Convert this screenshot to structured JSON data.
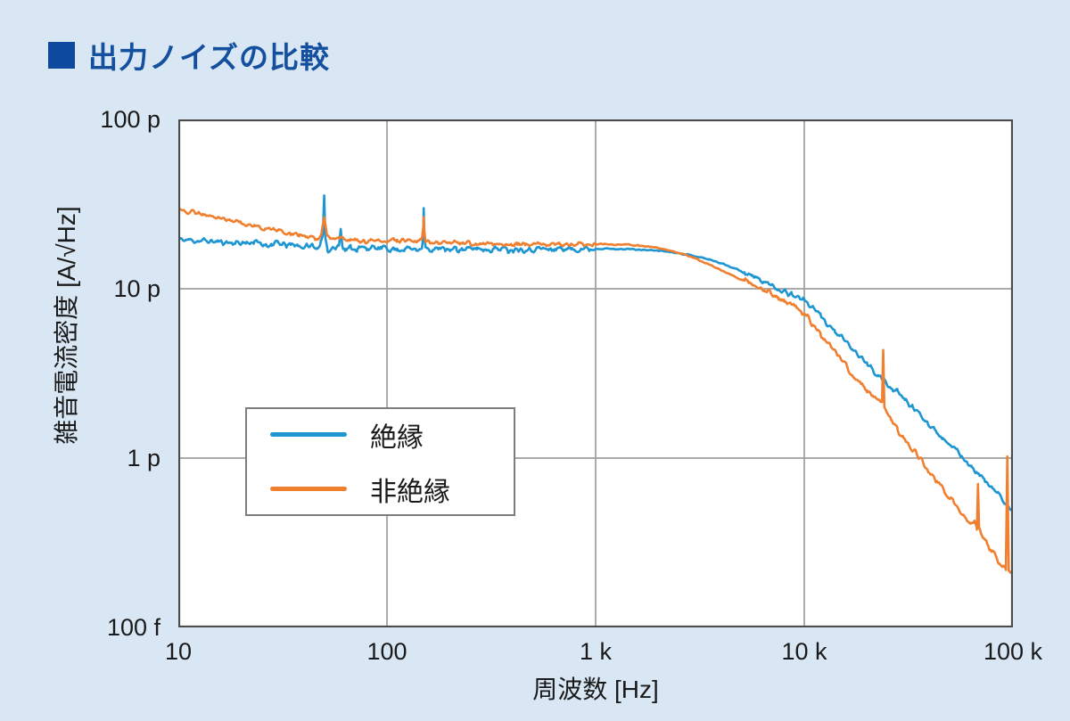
{
  "page": {
    "background_color": "#d9e7f5"
  },
  "header": {
    "bullet_color": "#0d4a9e",
    "title": "出力ノイズの比較",
    "title_color": "#15509f"
  },
  "chart_data": {
    "type": "line",
    "title": "出力ノイズの比較",
    "xlabel": "周波数 [Hz]",
    "ylabel": "雑音電流密度  [A/√Hz]",
    "unit": "pA/√Hz",
    "x_scale": "log",
    "y_scale": "log",
    "xlim_hz": [
      10,
      100000
    ],
    "ylim_pA": [
      0.1,
      100
    ],
    "grid": true,
    "grid_color": "#9e9e9e",
    "border_color": "#4b4b4b",
    "plot_bg": "#ffffff",
    "x_ticks": [
      {
        "v": 10,
        "label": "10"
      },
      {
        "v": 100,
        "label": "100"
      },
      {
        "v": 1000,
        "label": "1 k"
      },
      {
        "v": 10000,
        "label": "10 k"
      },
      {
        "v": 100000,
        "label": "100 k"
      }
    ],
    "y_ticks": [
      {
        "v": 100,
        "label": "100 p"
      },
      {
        "v": 10,
        "label": "10 p"
      },
      {
        "v": 1,
        "label": "1 p"
      },
      {
        "v": 0.1,
        "label": "100 f"
      }
    ],
    "legend": {
      "position": "inside-left"
    },
    "noise_seed": 11,
    "series": [
      {
        "name": "絶縁",
        "color": "#1e96d2",
        "noise_amp_low": 0.016,
        "noise_amp_mid": 0.003,
        "noise_amp_high": 0.015,
        "anchors_hz_pA": [
          [
            10,
            19.5
          ],
          [
            13,
            19.2
          ],
          [
            16,
            18.9
          ],
          [
            20,
            18.6
          ],
          [
            23,
            18.9
          ],
          [
            25,
            18.3
          ],
          [
            28,
            18.2
          ],
          [
            30,
            18.6
          ],
          [
            33,
            17.9
          ],
          [
            36,
            18.2
          ],
          [
            40,
            17.6
          ],
          [
            44,
            18.0
          ],
          [
            46,
            17.4
          ],
          [
            48,
            18.3
          ],
          [
            49.3,
            20
          ],
          [
            50,
            36
          ],
          [
            50.7,
            20
          ],
          [
            52,
            16.9
          ],
          [
            55,
            17.6
          ],
          [
            57,
            17.2
          ],
          [
            59,
            18.5
          ],
          [
            60,
            22.5
          ],
          [
            61,
            18.5
          ],
          [
            63,
            17.0
          ],
          [
            67,
            17.5
          ],
          [
            72,
            17.2
          ],
          [
            80,
            17.5
          ],
          [
            90,
            17.2
          ],
          [
            100,
            17.4
          ],
          [
            112,
            17.0
          ],
          [
            125,
            17.4
          ],
          [
            138,
            17.0
          ],
          [
            147,
            17.8
          ],
          [
            149,
            20
          ],
          [
            150,
            30
          ],
          [
            151,
            20
          ],
          [
            153,
            17.5
          ],
          [
            158,
            16.8
          ],
          [
            170,
            17.2
          ],
          [
            190,
            17.0
          ],
          [
            215,
            17.3
          ],
          [
            240,
            17.0
          ],
          [
            270,
            17.4
          ],
          [
            300,
            17.1
          ],
          [
            340,
            17.3
          ],
          [
            380,
            17.0
          ],
          [
            430,
            17.3
          ],
          [
            480,
            17.1
          ],
          [
            540,
            17.3
          ],
          [
            600,
            17.0
          ],
          [
            680,
            17.4
          ],
          [
            760,
            17.1
          ],
          [
            850,
            17.3
          ],
          [
            950,
            17.2
          ],
          [
            1100,
            17.3
          ],
          [
            1250,
            17.1
          ],
          [
            1400,
            17.2
          ],
          [
            1600,
            17.0
          ],
          [
            1800,
            16.9
          ],
          [
            2000,
            16.8
          ],
          [
            2300,
            16.5
          ],
          [
            2600,
            16.1
          ],
          [
            3000,
            15.6
          ],
          [
            3500,
            14.9
          ],
          [
            4100,
            14.0
          ],
          [
            4800,
            13.0
          ],
          [
            5600,
            11.9
          ],
          [
            6500,
            10.9
          ],
          [
            7500,
            10.0
          ],
          [
            8700,
            9.3
          ],
          [
            10000,
            8.6
          ],
          [
            12000,
            6.9
          ],
          [
            14000,
            5.6
          ],
          [
            17000,
            4.4
          ],
          [
            20000,
            3.6
          ],
          [
            24000,
            2.85
          ],
          [
            28000,
            2.43
          ],
          [
            33000,
            2.0
          ],
          [
            39000,
            1.63
          ],
          [
            46000,
            1.33
          ],
          [
            54000,
            1.09
          ],
          [
            63000,
            0.9
          ],
          [
            74000,
            0.73
          ],
          [
            86000,
            0.6
          ],
          [
            100000,
            0.47
          ]
        ]
      },
      {
        "name": "非絶縁",
        "color": "#f08030",
        "noise_amp_low": 0.012,
        "noise_amp_mid": 0.003,
        "noise_amp_high": 0.017,
        "anchors_hz_pA": [
          [
            10,
            29.5
          ],
          [
            12,
            28.2
          ],
          [
            14,
            27.0
          ],
          [
            17,
            25.5
          ],
          [
            20,
            24.5
          ],
          [
            23,
            23.5
          ],
          [
            26,
            22.8
          ],
          [
            30,
            22.0
          ],
          [
            34,
            21.3
          ],
          [
            38,
            20.7
          ],
          [
            42,
            20.2
          ],
          [
            45,
            19.9
          ],
          [
            47,
            19.7
          ],
          [
            48.5,
            21
          ],
          [
            50,
            27
          ],
          [
            51.5,
            21
          ],
          [
            53,
            19.6
          ],
          [
            56,
            19.5
          ],
          [
            59,
            20.3
          ],
          [
            60,
            20.8
          ],
          [
            61,
            20.1
          ],
          [
            64,
            19.4
          ],
          [
            70,
            19.3
          ],
          [
            78,
            19.1
          ],
          [
            88,
            19.3
          ],
          [
            100,
            19.4
          ],
          [
            112,
            19.0
          ],
          [
            125,
            19.2
          ],
          [
            138,
            19.0
          ],
          [
            147,
            19.8
          ],
          [
            149,
            22
          ],
          [
            150,
            26.5
          ],
          [
            151,
            22
          ],
          [
            153,
            19.3
          ],
          [
            160,
            18.9
          ],
          [
            175,
            18.7
          ],
          [
            195,
            18.6
          ],
          [
            220,
            18.5
          ],
          [
            250,
            18.6
          ],
          [
            280,
            18.4
          ],
          [
            320,
            18.5
          ],
          [
            360,
            18.3
          ],
          [
            410,
            18.5
          ],
          [
            460,
            18.3
          ],
          [
            520,
            18.4
          ],
          [
            590,
            18.3
          ],
          [
            670,
            18.5
          ],
          [
            760,
            18.3
          ],
          [
            860,
            18.4
          ],
          [
            970,
            18.3
          ],
          [
            1100,
            18.4
          ],
          [
            1250,
            18.2
          ],
          [
            1400,
            18.3
          ],
          [
            1600,
            18.0
          ],
          [
            1800,
            17.7
          ],
          [
            2000,
            17.4
          ],
          [
            2300,
            16.8
          ],
          [
            2600,
            16.1
          ],
          [
            3000,
            15.1
          ],
          [
            3500,
            13.9
          ],
          [
            4100,
            12.7
          ],
          [
            4800,
            11.5
          ],
          [
            5600,
            10.5
          ],
          [
            6500,
            9.7
          ],
          [
            7500,
            9.0
          ],
          [
            8700,
            8.0
          ],
          [
            10000,
            7.2
          ],
          [
            12000,
            5.4
          ],
          [
            14000,
            4.3
          ],
          [
            17000,
            3.15
          ],
          [
            20000,
            2.45
          ],
          [
            22000,
            2.2
          ],
          [
            23600,
            2.1
          ],
          [
            23900,
            4.2
          ],
          [
            24200,
            2.0
          ],
          [
            26000,
            1.7
          ],
          [
            28000,
            1.45
          ],
          [
            33000,
            1.12
          ],
          [
            39000,
            0.87
          ],
          [
            46000,
            0.67
          ],
          [
            54000,
            0.52
          ],
          [
            63000,
            0.41
          ],
          [
            67200,
            0.4
          ],
          [
            68000,
            0.72
          ],
          [
            68800,
            0.38
          ],
          [
            74000,
            0.32
          ],
          [
            80000,
            0.28
          ],
          [
            86000,
            0.25
          ],
          [
            92500,
            0.22
          ],
          [
            94000,
            1.05
          ],
          [
            95500,
            0.21
          ],
          [
            100000,
            0.2
          ]
        ]
      }
    ]
  }
}
